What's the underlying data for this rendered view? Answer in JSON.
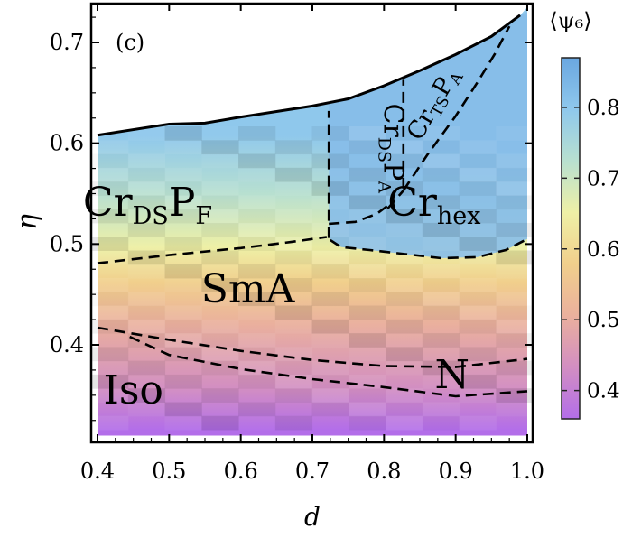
{
  "chart_data": {
    "type": "heatmap",
    "panel_label": "(c)",
    "xlabel": "d",
    "ylabel": "η",
    "xlim": [
      0.4,
      1.0
    ],
    "ylim": [
      0.3,
      0.74
    ],
    "xticks": [
      {
        "v": 0.4,
        "label": "0.4"
      },
      {
        "v": 0.5,
        "label": "0.5"
      },
      {
        "v": 0.6,
        "label": "0.6"
      },
      {
        "v": 0.7,
        "label": "0.7"
      },
      {
        "v": 0.8,
        "label": "0.8"
      },
      {
        "v": 0.9,
        "label": "0.9"
      },
      {
        "v": 1.0,
        "label": "1.0"
      }
    ],
    "yticks": [
      {
        "v": 0.4,
        "label": "0.4"
      },
      {
        "v": 0.5,
        "label": "0.5"
      },
      {
        "v": 0.6,
        "label": "0.6"
      },
      {
        "v": 0.7,
        "label": "0.7"
      }
    ],
    "colorbar": {
      "label": "⟨ψ₆⟩",
      "range": [
        0.36,
        0.87
      ],
      "ticks": [
        {
          "v": 0.4,
          "label": "0.4"
        },
        {
          "v": 0.5,
          "label": "0.5"
        },
        {
          "v": 0.6,
          "label": "0.6"
        },
        {
          "v": 0.7,
          "label": "0.7"
        },
        {
          "v": 0.8,
          "label": "0.8"
        }
      ],
      "stops": [
        "#b36ee9",
        "#d28ec2",
        "#eab09d",
        "#f1cf8c",
        "#eef0a6",
        "#b8e0d0",
        "#8fc8ec",
        "#6aa7e1"
      ]
    },
    "upper_boundary": [
      [
        0.4,
        0.608
      ],
      [
        0.5,
        0.619
      ],
      [
        0.55,
        0.62
      ],
      [
        0.6,
        0.626
      ],
      [
        0.7,
        0.637
      ],
      [
        0.75,
        0.644
      ],
      [
        0.8,
        0.657
      ],
      [
        0.85,
        0.672
      ],
      [
        0.9,
        0.688
      ],
      [
        0.95,
        0.706
      ],
      [
        0.99,
        0.727
      ]
    ],
    "dashed_boundaries": [
      {
        "name": "crdspf-smA",
        "points": [
          [
            0.4,
            0.481
          ],
          [
            0.5,
            0.489
          ],
          [
            0.6,
            0.496
          ],
          [
            0.67,
            0.502
          ],
          [
            0.72,
            0.507
          ]
        ]
      },
      {
        "name": "cr-smA",
        "points": [
          [
            0.725,
            0.504
          ],
          [
            0.74,
            0.497
          ],
          [
            0.78,
            0.494
          ],
          [
            0.83,
            0.49
          ],
          [
            0.88,
            0.486
          ],
          [
            0.93,
            0.487
          ],
          [
            0.97,
            0.494
          ],
          [
            1.0,
            0.505
          ]
        ]
      },
      {
        "name": "crdspf-vertical",
        "points": [
          [
            0.723,
            0.506
          ],
          [
            0.723,
            0.585
          ],
          [
            0.723,
            0.632
          ]
        ]
      },
      {
        "name": "crdspf-crdspa",
        "points": [
          [
            0.723,
            0.52
          ],
          [
            0.76,
            0.522
          ],
          [
            0.79,
            0.53
          ],
          [
            0.805,
            0.538
          ]
        ]
      },
      {
        "name": "crdspa-crtspa",
        "points": [
          [
            0.827,
            0.555
          ],
          [
            0.827,
            0.6
          ],
          [
            0.827,
            0.663
          ]
        ]
      },
      {
        "name": "crhex-lower",
        "points": [
          [
            0.805,
            0.535
          ],
          [
            0.827,
            0.553
          ]
        ]
      },
      {
        "name": "crhex-crtspa",
        "points": [
          [
            0.827,
            0.553
          ],
          [
            0.86,
            0.588
          ],
          [
            0.9,
            0.627
          ],
          [
            0.93,
            0.66
          ],
          [
            0.955,
            0.689
          ],
          [
            0.975,
            0.716
          ]
        ]
      },
      {
        "name": "iso-smA",
        "points": [
          [
            0.4,
            0.417
          ],
          [
            0.5,
            0.405
          ],
          [
            0.6,
            0.394
          ],
          [
            0.7,
            0.385
          ],
          [
            0.8,
            0.379
          ],
          [
            0.9,
            0.378
          ],
          [
            1.0,
            0.386
          ]
        ]
      },
      {
        "name": "iso-N",
        "points": [
          [
            0.445,
            0.408
          ],
          [
            0.5,
            0.39
          ],
          [
            0.6,
            0.376
          ],
          [
            0.7,
            0.366
          ],
          [
            0.8,
            0.358
          ],
          [
            0.9,
            0.349
          ],
          [
            1.0,
            0.354
          ]
        ]
      }
    ],
    "phase_labels": [
      {
        "name": "crdspf",
        "text": "Cr",
        "sub": "DS",
        "text2": "P",
        "sub2": "F",
        "x": 0.47,
        "y": 0.528,
        "size": 44,
        "rotate": 0
      },
      {
        "name": "crhex",
        "text": "Cr",
        "sub": "hex",
        "text2": "",
        "sub2": "",
        "x": 0.87,
        "y": 0.528,
        "size": 44,
        "rotate": 0
      },
      {
        "name": "smA",
        "text": "SmA",
        "sub": "",
        "text2": "",
        "sub2": "",
        "x": 0.61,
        "y": 0.442,
        "size": 44,
        "rotate": 0
      },
      {
        "name": "iso",
        "text": "Iso",
        "sub": "",
        "text2": "",
        "sub2": "",
        "x": 0.45,
        "y": 0.342,
        "size": 44,
        "rotate": 0
      },
      {
        "name": "N",
        "text": "N",
        "sub": "",
        "text2": "",
        "sub2": "",
        "x": 0.895,
        "y": 0.357,
        "size": 44,
        "rotate": 0
      },
      {
        "name": "crdspa",
        "text": "Cr",
        "sub": "DS",
        "text2": "P",
        "sub2": "A",
        "x": 0.8,
        "y": 0.595,
        "size": 30,
        "rotate": 90
      },
      {
        "name": "crtspa",
        "text": "Cr",
        "sub": "TS",
        "text2": "P",
        "sub2": "A",
        "x": 0.878,
        "y": 0.635,
        "size": 27,
        "rotate": -60
      }
    ]
  }
}
